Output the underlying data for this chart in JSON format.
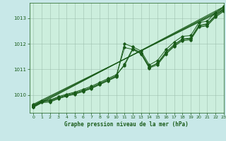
{
  "title": "Graphe pression niveau de la mer (hPa)",
  "bg_color": "#c8e8e8",
  "plot_bg_color": "#cceedd",
  "line_color": "#1a5c1a",
  "grid_color": "#99bbaa",
  "xlim": [
    -0.5,
    23
  ],
  "ylim": [
    1009.3,
    1013.6
  ],
  "yticks": [
    1010,
    1011,
    1012,
    1013
  ],
  "xticks": [
    0,
    1,
    2,
    3,
    4,
    5,
    6,
    7,
    8,
    9,
    10,
    11,
    12,
    13,
    14,
    15,
    16,
    17,
    18,
    19,
    20,
    21,
    22,
    23
  ],
  "series": [
    [
      1009.55,
      1009.73,
      1009.75,
      1009.87,
      1009.97,
      1010.05,
      1010.15,
      1010.27,
      1010.42,
      1010.57,
      1010.72,
      1011.85,
      1011.78,
      1011.62,
      1011.07,
      1011.25,
      1011.67,
      1011.97,
      1012.19,
      1012.22,
      1012.73,
      1012.78,
      1013.12,
      1013.35
    ],
    [
      1009.58,
      1009.75,
      1009.78,
      1009.9,
      1010.0,
      1010.08,
      1010.18,
      1010.3,
      1010.45,
      1010.6,
      1010.75,
      1011.2,
      1011.82,
      1011.65,
      1011.1,
      1011.22,
      1011.63,
      1011.93,
      1012.16,
      1012.19,
      1012.69,
      1012.74,
      1013.08,
      1013.31
    ],
    [
      1009.6,
      1009.77,
      1009.8,
      1009.93,
      1010.03,
      1010.11,
      1010.22,
      1010.34,
      1010.49,
      1010.64,
      1010.79,
      1011.15,
      1011.78,
      1011.6,
      1011.05,
      1011.18,
      1011.59,
      1011.89,
      1012.12,
      1012.15,
      1012.65,
      1012.7,
      1013.04,
      1013.27
    ],
    [
      1009.52,
      1009.7,
      1009.72,
      1009.85,
      1009.95,
      1010.03,
      1010.13,
      1010.25,
      1010.4,
      1010.55,
      1010.7,
      1012.0,
      1011.88,
      1011.72,
      1011.17,
      1011.35,
      1011.77,
      1012.07,
      1012.29,
      1012.32,
      1012.83,
      1012.88,
      1013.22,
      1013.45
    ]
  ],
  "series_straight": [
    [
      1009.52,
      1013.45
    ],
    [
      1009.56,
      1013.4
    ],
    [
      1009.6,
      1013.36
    ],
    [
      1009.64,
      1013.32
    ]
  ]
}
